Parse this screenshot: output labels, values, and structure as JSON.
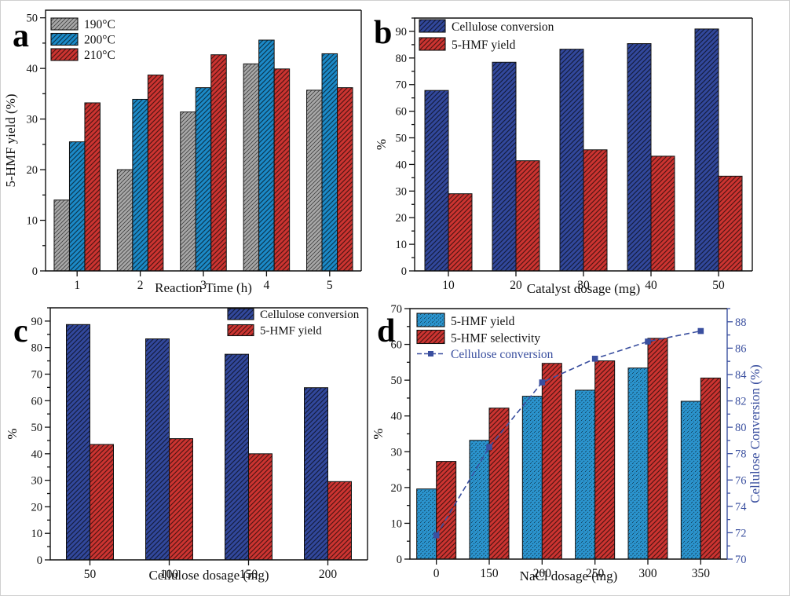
{
  "figure": {
    "description": "Four-panel bar chart figure on 5-HMF yield and cellulose conversion",
    "background_color": "#ffffff"
  },
  "chart_data": [
    {
      "panel_label": "a",
      "type": "bar",
      "categories": [
        "1",
        "2",
        "3",
        "4",
        "5"
      ],
      "series": [
        {
          "name": "190°C",
          "color": "#a8a8a8",
          "hatch": "diag-fine",
          "values": [
            14.0,
            20.0,
            31.4,
            40.9,
            35.7
          ]
        },
        {
          "name": "200°C",
          "color": "#1c8ac8",
          "hatch": "diag",
          "values": [
            25.5,
            33.9,
            36.2,
            45.6,
            42.9
          ]
        },
        {
          "name": "210°C",
          "color": "#cc3431",
          "hatch": "diag",
          "values": [
            33.2,
            38.7,
            42.7,
            39.9,
            36.2
          ]
        }
      ],
      "xlabel": "Reaction Time (h)",
      "ylabel": "5-HMF yield (%)",
      "ylim": [
        0,
        51.5
      ],
      "ytick_step": 10,
      "yminor_step": 5,
      "legend_position": "top-left",
      "grid": "off"
    },
    {
      "panel_label": "b",
      "type": "bar",
      "categories": [
        "10",
        "20",
        "30",
        "40",
        "50"
      ],
      "series": [
        {
          "name": "Cellulose conversion",
          "color": "#32489c",
          "hatch": "diag",
          "values": [
            67.8,
            78.4,
            83.3,
            85.4,
            90.9
          ]
        },
        {
          "name": "5-HMF yield",
          "color": "#cc3431",
          "hatch": "diag",
          "values": [
            29.0,
            41.4,
            45.5,
            43.1,
            35.6
          ]
        }
      ],
      "xlabel": "Catalyst dosage (mg)",
      "ylabel": "%",
      "ylim": [
        0,
        95
      ],
      "ytick_step": 10,
      "yminor_step": 5,
      "legend_position": "top-left",
      "grid": "off"
    },
    {
      "panel_label": "c",
      "type": "bar",
      "categories": [
        "50",
        "100",
        "150",
        "200"
      ],
      "series": [
        {
          "name": "Cellulose conversion",
          "color": "#32489c",
          "hatch": "diag",
          "values": [
            88.7,
            83.3,
            77.5,
            64.9
          ]
        },
        {
          "name": "5-HMF yield",
          "color": "#cc3431",
          "hatch": "diag",
          "values": [
            43.5,
            45.7,
            40.0,
            29.5
          ]
        }
      ],
      "xlabel": "Cellulose dosage (mg)",
      "ylabel": "%",
      "ylim": [
        0,
        95
      ],
      "ytick_step": 10,
      "yminor_step": 5,
      "legend_position": "top-right",
      "grid": "off"
    },
    {
      "panel_label": "d",
      "type": "bar+line",
      "categories": [
        "0",
        "150",
        "200",
        "250",
        "300",
        "350"
      ],
      "series": [
        {
          "name": "5-HMF yield",
          "color": "#2b94ce",
          "hatch": "dots",
          "values": [
            19.6,
            33.2,
            45.5,
            47.2,
            53.4,
            44.1
          ]
        },
        {
          "name": "5-HMF selectivity",
          "color": "#cc3431",
          "hatch": "diag",
          "values": [
            27.3,
            42.2,
            54.7,
            55.4,
            61.7,
            50.6
          ]
        }
      ],
      "line_series": {
        "name": "Cellulose conversion",
        "axis": "right",
        "marker": "square",
        "color": "#3a4f9f",
        "values": [
          71.8,
          78.5,
          83.4,
          85.2,
          86.5,
          87.3
        ]
      },
      "xlabel": "NaCl dosage (mg)",
      "ylabel": "%",
      "ylabel_right": "Cellulose Conversion (%)",
      "ylim": [
        0,
        70
      ],
      "ytick_step": 10,
      "yminor_step": 5,
      "ylim_right": [
        70,
        89
      ],
      "ytick_step_right": 2,
      "yminor_step_right": 1,
      "right_axis_color": "#3a4f9f",
      "legend_position": "top-left",
      "grid": "off"
    }
  ]
}
